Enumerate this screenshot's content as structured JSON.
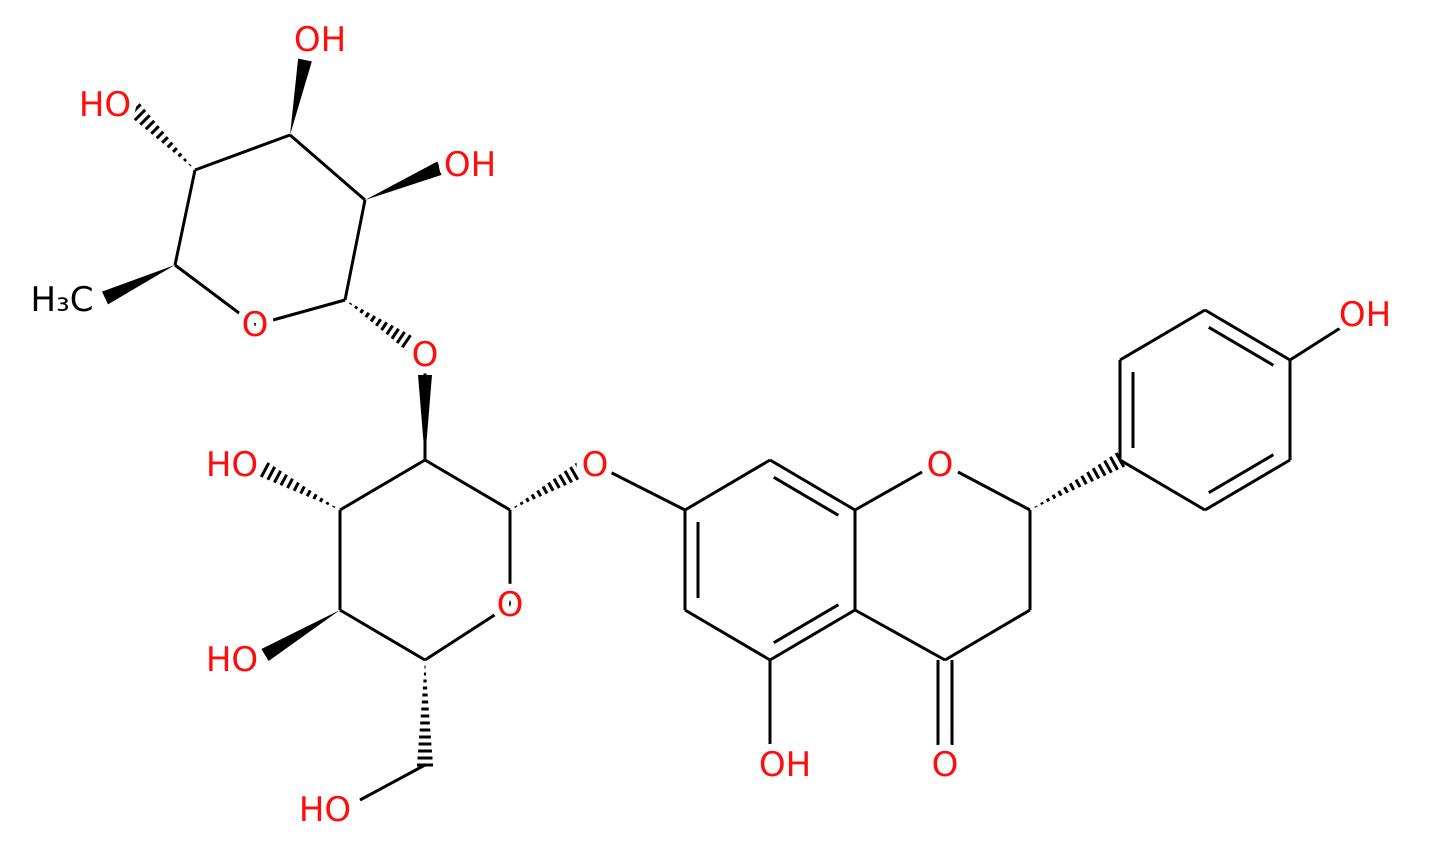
{
  "atoms": [
    {
      "label": "OH"
    },
    {
      "label": "HO"
    },
    {
      "label": "OH"
    },
    {
      "label": "H₃C"
    },
    {
      "label": "O"
    },
    {
      "label": "O"
    },
    {
      "label": "HO"
    },
    {
      "label": "O"
    },
    {
      "label": "O"
    },
    {
      "label": "OH"
    },
    {
      "label": "O"
    },
    {
      "label": "HO"
    },
    {
      "label": "OH"
    },
    {
      "label": "O"
    },
    {
      "label": "HO"
    }
  ]
}
